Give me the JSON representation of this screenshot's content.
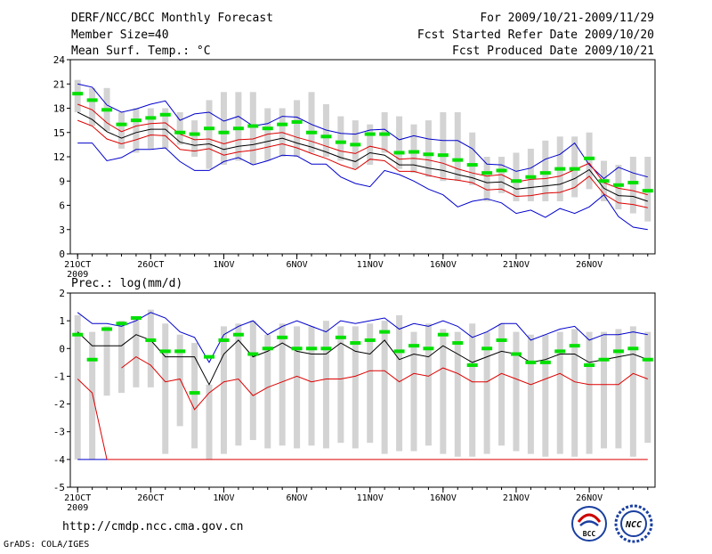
{
  "header": {
    "title": "DERF/NCC/BCC Monthly Forecast",
    "member_size": "Member Size=40",
    "variable": "Mean Surf. Temp.: °C",
    "period": "For 2009/10/21-2009/11/29",
    "refer_date": "Fcst Started Refer Date 2009/10/20",
    "produced_date": "Fcst Produced Date 2009/10/21"
  },
  "footer": {
    "url": "http://cmdp.ncc.cma.gov.cn",
    "credit": "GrADS: COLA/IGES",
    "logo_bcc_text": "BCC",
    "logo_ncc_text": "NCC"
  },
  "colors": {
    "box": "#d3d3d3",
    "median": "#00e000",
    "mean": "#000000",
    "envelope": "#0000cc",
    "spread": "#dd0000"
  },
  "chart_data": [
    {
      "type": "line",
      "name": "temperature",
      "title": "Mean Surf. Temp.: °C",
      "ylim": [
        0,
        24
      ],
      "yticks": [
        0,
        3,
        6,
        9,
        12,
        15,
        18,
        21,
        24
      ],
      "xlim": [
        0.5,
        40.5
      ],
      "xticks": [
        {
          "day": 1,
          "label": "21OCT",
          "sublabel": "2009"
        },
        {
          "day": 6,
          "label": "26OCT"
        },
        {
          "day": 11,
          "label": "1NOV"
        },
        {
          "day": 16,
          "label": "6NOV"
        },
        {
          "day": 21,
          "label": "11NOV"
        },
        {
          "day": 26,
          "label": "16NOV"
        },
        {
          "day": 31,
          "label": "21NOV"
        },
        {
          "day": 36,
          "label": "26NOV"
        }
      ],
      "box_low": [
        17.5,
        15.8,
        15.2,
        13.0,
        12.5,
        13.0,
        13.0,
        13.5,
        12.0,
        10.5,
        11.0,
        11.5,
        11.0,
        11.5,
        12.0,
        12.0,
        12.5,
        12.0,
        11.5,
        10.5,
        11.0,
        12.5,
        10.5,
        10.0,
        9.5,
        9.0,
        9.0,
        8.5,
        6.5,
        7.5,
        6.5,
        6.5,
        6.5,
        6.5,
        7.0,
        8.0,
        6.5,
        5.5,
        5.0,
        4.0
      ],
      "box_high": [
        21.5,
        20.5,
        20.5,
        17.5,
        18.0,
        18.0,
        18.0,
        17.5,
        16.5,
        19.0,
        20.0,
        20.0,
        20.0,
        18.0,
        18.0,
        19.0,
        20.0,
        18.5,
        17.0,
        16.5,
        16.0,
        17.5,
        17.0,
        16.0,
        16.5,
        17.5,
        17.5,
        15.0,
        12.0,
        12.0,
        12.5,
        13.0,
        14.0,
        14.5,
        14.5,
        15.0,
        11.5,
        11.0,
        12.0,
        12.0
      ],
      "median": [
        19.8,
        19.0,
        17.8,
        16.0,
        16.5,
        16.8,
        17.2,
        15.0,
        14.8,
        15.5,
        15.0,
        15.5,
        15.8,
        15.5,
        16.0,
        16.3,
        15.0,
        14.5,
        13.8,
        13.5,
        14.8,
        14.8,
        12.5,
        12.6,
        12.3,
        12.2,
        11.6,
        11.0,
        10.0,
        10.3,
        9.0,
        9.5,
        10.0,
        10.5,
        10.5,
        11.8,
        9.0,
        8.5,
        8.8,
        7.8
      ],
      "series": [
        {
          "name": "max",
          "color": "envelope",
          "values": [
            21.0,
            20.6,
            18.4,
            17.5,
            17.9,
            18.5,
            18.9,
            16.5,
            17.3,
            17.5,
            16.4,
            17.0,
            15.8,
            16.1,
            17.0,
            16.9,
            16.0,
            15.3,
            14.9,
            14.8,
            15.3,
            15.4,
            14.1,
            14.6,
            14.2,
            14.0,
            14.0,
            13.0,
            11.1,
            11.0,
            10.2,
            10.6,
            11.7,
            12.3,
            13.7,
            11.0,
            9.3,
            10.7,
            10.0,
            9.5
          ]
        },
        {
          "name": "mean_plus",
          "color": "spread",
          "values": [
            18.5,
            17.8,
            16.2,
            15.1,
            15.8,
            16.1,
            16.2,
            14.8,
            14.1,
            14.2,
            13.6,
            14.1,
            14.2,
            14.8,
            15.0,
            14.4,
            13.9,
            13.3,
            12.7,
            12.4,
            13.3,
            12.9,
            11.7,
            11.8,
            11.6,
            11.2,
            10.5,
            10.0,
            9.6,
            9.8,
            8.9,
            9.2,
            9.3,
            9.6,
            10.4,
            11.2,
            8.8,
            8.1,
            7.8,
            7.3
          ]
        },
        {
          "name": "mean",
          "color": "mean",
          "values": [
            17.5,
            16.6,
            15.1,
            14.3,
            15.0,
            15.4,
            15.4,
            13.8,
            13.4,
            13.6,
            12.9,
            13.3,
            13.5,
            13.9,
            14.3,
            13.7,
            13.2,
            12.6,
            11.9,
            11.4,
            12.5,
            12.2,
            11.0,
            11.0,
            10.6,
            10.3,
            9.8,
            9.4,
            8.8,
            8.9,
            8.0,
            8.2,
            8.4,
            8.6,
            9.3,
            10.4,
            8.1,
            7.2,
            7.1,
            6.5
          ]
        },
        {
          "name": "mean_minus",
          "color": "spread",
          "values": [
            16.5,
            15.8,
            14.2,
            13.6,
            14.1,
            14.7,
            14.6,
            12.9,
            12.7,
            13.0,
            12.2,
            12.6,
            12.8,
            13.2,
            13.6,
            13.1,
            12.4,
            11.8,
            11.0,
            10.4,
            11.7,
            11.5,
            10.2,
            10.2,
            9.7,
            9.3,
            9.1,
            8.8,
            7.9,
            8.0,
            7.1,
            7.2,
            7.5,
            7.6,
            8.2,
            9.6,
            7.4,
            6.3,
            6.1,
            5.7
          ]
        },
        {
          "name": "min",
          "color": "envelope",
          "values": [
            13.7,
            13.7,
            11.5,
            11.9,
            12.9,
            12.9,
            13.1,
            11.4,
            10.3,
            10.3,
            11.4,
            11.9,
            11.0,
            11.5,
            12.2,
            12.1,
            11.1,
            11.1,
            9.5,
            8.7,
            8.3,
            10.3,
            9.8,
            9.0,
            8.0,
            7.3,
            5.8,
            6.5,
            6.8,
            6.3,
            5.0,
            5.4,
            4.5,
            5.6,
            5.0,
            5.8,
            7.3,
            4.6,
            3.3,
            3.0
          ]
        }
      ]
    },
    {
      "type": "line",
      "name": "precipitation",
      "title": "Prec.: log(mm/d)",
      "ylim": [
        -5,
        2
      ],
      "yticks": [
        -5,
        -4,
        -3,
        -2,
        -1,
        0,
        1,
        2
      ],
      "xlim": [
        0.5,
        40.5
      ],
      "xticks": [
        {
          "day": 1,
          "label": "21OCT",
          "sublabel": "2009"
        },
        {
          "day": 6,
          "label": "26OCT"
        },
        {
          "day": 11,
          "label": "1NOV"
        },
        {
          "day": 16,
          "label": "6NOV"
        },
        {
          "day": 21,
          "label": "11NOV"
        },
        {
          "day": 26,
          "label": "16NOV"
        },
        {
          "day": 31,
          "label": "21NOV"
        },
        {
          "day": 36,
          "label": "26NOV"
        }
      ],
      "box_low": [
        -4.0,
        -4.0,
        -1.7,
        -1.6,
        -1.4,
        -1.4,
        -3.8,
        -2.8,
        -3.6,
        -4.0,
        -3.8,
        -3.5,
        -3.3,
        -3.6,
        -3.5,
        -3.6,
        -3.5,
        -3.6,
        -3.4,
        -3.6,
        -3.4,
        -3.8,
        -3.7,
        -3.7,
        -3.5,
        -3.8,
        -3.9,
        -3.9,
        -3.8,
        -3.5,
        -3.7,
        -3.8,
        -3.9,
        -3.8,
        -3.9,
        -3.8,
        -3.6,
        -3.6,
        -3.9,
        -3.4
      ],
      "box_high": [
        1.2,
        0.6,
        0.8,
        1.0,
        1.1,
        1.4,
        0.9,
        0.5,
        0.2,
        -1.3,
        0.8,
        0.9,
        1.0,
        0.5,
        0.9,
        0.8,
        0.8,
        1.0,
        0.8,
        0.8,
        0.9,
        1.0,
        1.2,
        0.6,
        0.9,
        0.7,
        0.6,
        0.9,
        0.6,
        0.9,
        0.6,
        0.5,
        0.5,
        0.6,
        0.7,
        0.6,
        0.6,
        0.7,
        0.8,
        0.6
      ],
      "median": [
        0.5,
        -0.4,
        0.7,
        0.9,
        1.1,
        0.3,
        -0.1,
        -0.1,
        -1.6,
        -0.3,
        0.3,
        0.5,
        -0.2,
        0.0,
        0.4,
        0.0,
        0.0,
        0.0,
        0.4,
        0.2,
        0.3,
        0.6,
        -0.1,
        0.1,
        0.0,
        0.5,
        0.2,
        -0.6,
        0.0,
        0.3,
        -0.2,
        -0.5,
        -0.5,
        -0.1,
        0.1,
        -0.6,
        -0.4,
        -0.1,
        0.0,
        -0.4
      ],
      "series": [
        {
          "name": "max",
          "color": "envelope",
          "values": [
            1.3,
            0.9,
            0.9,
            0.8,
            1.0,
            1.3,
            1.1,
            0.6,
            0.4,
            -0.5,
            0.5,
            0.8,
            1.0,
            0.5,
            0.8,
            1.0,
            0.8,
            0.6,
            1.0,
            0.9,
            1.0,
            1.1,
            0.7,
            0.9,
            0.8,
            1.0,
            0.8,
            0.4,
            0.6,
            0.9,
            0.9,
            0.3,
            0.5,
            0.7,
            0.8,
            0.3,
            0.5,
            0.5,
            0.6,
            0.5
          ]
        },
        {
          "name": "mean",
          "color": "mean",
          "values": [
            0.6,
            0.1,
            0.1,
            0.1,
            0.5,
            0.3,
            -0.3,
            -0.3,
            -0.3,
            -1.3,
            -0.2,
            0.3,
            -0.3,
            -0.1,
            0.2,
            -0.1,
            -0.2,
            -0.2,
            0.2,
            -0.1,
            -0.2,
            0.3,
            -0.4,
            -0.2,
            -0.3,
            0.1,
            -0.2,
            -0.5,
            -0.3,
            -0.1,
            -0.2,
            -0.5,
            -0.4,
            -0.2,
            -0.2,
            -0.5,
            -0.4,
            -0.3,
            -0.2,
            -0.4
          ]
        },
        {
          "name": "mean_minus",
          "color": "spread",
          "values": [
            -1.1,
            -1.6,
            -4.0,
            -4.0,
            -4.0,
            -4.0,
            -4.0,
            -4.0,
            -4.0,
            -4.0,
            -4.0,
            -4.0,
            -4.0,
            -4.0,
            -4.0,
            -4.0,
            -4.0,
            -4.0,
            -4.0,
            -4.0,
            -4.0,
            -4.0,
            -4.0,
            -4.0,
            -4.0,
            -4.0,
            -4.0,
            -4.0,
            -4.0,
            -4.0,
            -4.0,
            -4.0,
            -4.0,
            -4.0,
            -4.0,
            -4.0,
            -4.0,
            -4.0,
            -4.0,
            -4.0
          ]
        },
        {
          "name": "mean_minus_inner",
          "color": "spread",
          "values": [
            null,
            null,
            null,
            -0.7,
            -0.3,
            -0.6,
            -1.2,
            -1.1,
            -2.2,
            -1.6,
            -1.2,
            -1.1,
            -1.7,
            -1.4,
            -1.2,
            -1.0,
            -1.2,
            -1.1,
            -1.1,
            -1.0,
            -0.8,
            -0.8,
            -1.2,
            -0.9,
            -1.0,
            -0.7,
            -0.9,
            -1.2,
            -1.2,
            -0.9,
            -1.1,
            -1.3,
            -1.1,
            -0.9,
            -1.2,
            -1.3,
            -1.3,
            -1.3,
            -0.9,
            -1.1
          ]
        },
        {
          "name": "min",
          "color": "envelope",
          "values": [
            -4.0,
            -4.0,
            -4.0,
            null,
            null,
            null,
            null,
            null,
            null,
            null,
            null,
            null,
            null,
            null,
            null,
            null,
            null,
            null,
            null,
            null,
            null,
            null,
            null,
            null,
            null,
            null,
            null,
            null,
            null,
            null,
            null,
            null,
            null,
            null,
            null,
            null,
            null,
            null,
            null,
            null
          ]
        }
      ]
    }
  ]
}
